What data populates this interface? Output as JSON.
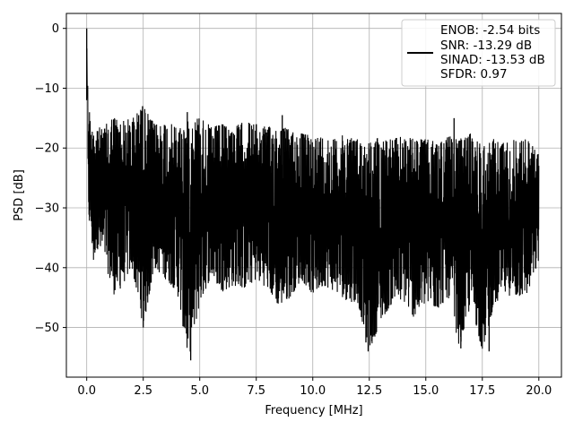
{
  "chart_data": {
    "type": "line",
    "title": "",
    "xlabel": "Frequency [MHz]",
    "ylabel": "PSD [dB]",
    "xlim": [
      -0.9,
      21.0
    ],
    "ylim": [
      -58.3,
      2.5
    ],
    "grid": true,
    "legend_position": "top-right",
    "xticks": [
      0.0,
      2.5,
      5.0,
      7.5,
      10.0,
      12.5,
      15.0,
      17.5,
      20.0
    ],
    "xtick_labels": [
      "0.0",
      "2.5",
      "5.0",
      "7.5",
      "10.0",
      "12.5",
      "15.0",
      "17.5",
      "20.0"
    ],
    "yticks": [
      0,
      -10,
      -20,
      -30,
      -40,
      -50
    ],
    "ytick_labels": [
      "0",
      "−10",
      "−20",
      "−30",
      "−40",
      "−50"
    ],
    "series": [
      {
        "name": "",
        "color": "#000000",
        "legend_lines": [
          "ENOB: -2.54 bits",
          "SNR: -13.29 dB",
          "SINAD: -13.53 dB",
          "SFDR: 0.97"
        ],
        "x": [
          0.0,
          0.02,
          0.04,
          0.07,
          0.1,
          0.13,
          0.17,
          0.22,
          0.3,
          0.4,
          0.5,
          0.6,
          0.8,
          1.0,
          1.2,
          1.5,
          2.0,
          2.5,
          3.0,
          3.5,
          4.0,
          4.5,
          5.0,
          5.5,
          6.0,
          6.5,
          7.0,
          7.5,
          8.0,
          8.5,
          9.0,
          9.5,
          10.0,
          10.5,
          11.0,
          11.5,
          12.0,
          12.5,
          13.0,
          13.5,
          14.0,
          14.5,
          15.0,
          15.5,
          16.0,
          16.5,
          17.0,
          17.5,
          18.0,
          18.5,
          19.0,
          19.5,
          20.0
        ],
        "upper": [
          0.0,
          -4.0,
          -8.0,
          -12.0,
          -10.0,
          -14.0,
          -16.0,
          -18.0,
          -14.0,
          -16.5,
          -15.5,
          -17.0,
          -16.5,
          -15.0,
          -14.5,
          -15.5,
          -15.0,
          -13.0,
          -16.0,
          -15.5,
          -16.5,
          -15.5,
          -14.5,
          -16.5,
          -16.0,
          -16.5,
          -15.5,
          -16.0,
          -16.5,
          -16.0,
          -17.0,
          -17.5,
          -18.0,
          -18.0,
          -18.5,
          -17.5,
          -18.5,
          -19.0,
          -18.0,
          -18.5,
          -18.0,
          -18.5,
          -18.5,
          -19.0,
          -18.0,
          -18.5,
          -17.5,
          -19.5,
          -18.5,
          -19.0,
          -18.5,
          -18.5,
          -21.0
        ],
        "lower": [
          -24.0,
          -30.0,
          -33.0,
          -30.0,
          -32.0,
          -34.5,
          -33.0,
          -35.5,
          -40.0,
          -36.5,
          -37.0,
          -38.0,
          -38.5,
          -42.0,
          -44.5,
          -43.5,
          -40.0,
          -50.0,
          -40.0,
          -42.0,
          -44.0,
          -55.5,
          -46.0,
          -41.5,
          -44.0,
          -43.0,
          -43.5,
          -42.0,
          -43.5,
          -46.5,
          -45.0,
          -42.0,
          -44.5,
          -43.0,
          -44.0,
          -45.5,
          -46.0,
          -54.0,
          -49.0,
          -46.0,
          -45.5,
          -48.5,
          -46.0,
          -47.0,
          -45.0,
          -53.5,
          -46.0,
          -54.0,
          -46.5,
          -44.5,
          -45.0,
          -44.5,
          -39.0
        ],
        "spikes_up": [
          {
            "x": 0.0,
            "y": 0.0
          },
          {
            "x": 2.3,
            "y": -14.5
          },
          {
            "x": 2.47,
            "y": -13.0
          },
          {
            "x": 4.45,
            "y": -14.0
          },
          {
            "x": 8.65,
            "y": -14.5
          },
          {
            "x": 16.25,
            "y": -15.0
          }
        ],
        "spikes_down": [
          {
            "x": 2.5,
            "y": -50.0
          },
          {
            "x": 4.6,
            "y": -55.5
          },
          {
            "x": 12.35,
            "y": -52.5
          },
          {
            "x": 12.45,
            "y": -54.0
          },
          {
            "x": 16.55,
            "y": -53.5
          },
          {
            "x": 17.8,
            "y": -54.0
          }
        ]
      }
    ]
  }
}
